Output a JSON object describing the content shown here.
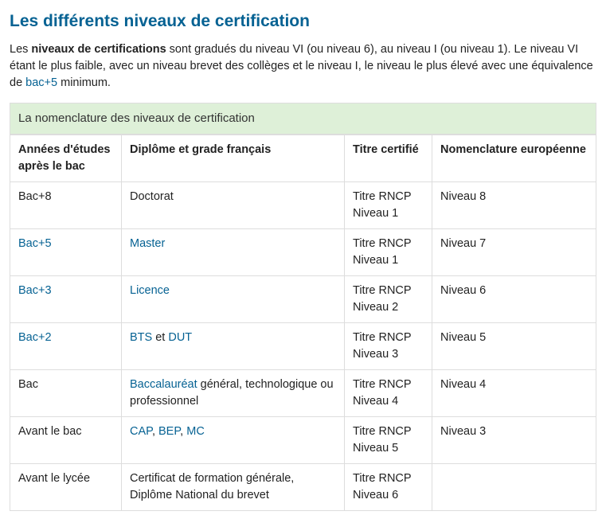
{
  "heading": "Les différents niveaux de certification",
  "intro": {
    "pre_bold": "Les ",
    "bold": "niveaux de certifications",
    "mid": " sont gradués du niveau VI (ou niveau 6), au niveau I (ou niveau 1). Le niveau VI étant le plus faible, avec un niveau brevet des collèges et le niveau I, le niveau le plus élevé avec une équivalence de ",
    "link": "bac+5",
    "post": " minimum."
  },
  "table": {
    "caption": "La nomenclature des niveaux de certification",
    "headers": {
      "a": "Années d'études après le bac",
      "b": "Diplôme et grade français",
      "c": "Titre certifié",
      "d": "Nomenclature européenne"
    },
    "rows": [
      {
        "a_text": "Bac+8",
        "a_link": false,
        "b_parts": [
          {
            "t": "Doctorat",
            "l": false
          }
        ],
        "c": "Titre RNCP Niveau 1",
        "d": "Niveau 8"
      },
      {
        "a_text": "Bac+5",
        "a_link": true,
        "b_parts": [
          {
            "t": "Master",
            "l": true
          }
        ],
        "c": "Titre RNCP Niveau 1",
        "d": "Niveau 7"
      },
      {
        "a_text": "Bac+3",
        "a_link": true,
        "b_parts": [
          {
            "t": "Licence",
            "l": true
          }
        ],
        "c": "Titre RNCP Niveau 2",
        "d": "Niveau 6"
      },
      {
        "a_text": "Bac+2",
        "a_link": true,
        "b_parts": [
          {
            "t": "BTS",
            "l": true
          },
          {
            "t": " et ",
            "l": false
          },
          {
            "t": "DUT",
            "l": true
          }
        ],
        "c": "Titre RNCP Niveau 3",
        "d": "Niveau 5"
      },
      {
        "a_text": "Bac",
        "a_link": false,
        "b_parts": [
          {
            "t": "Baccalauréat",
            "l": true
          },
          {
            "t": " général, technologique ou professionnel",
            "l": false
          }
        ],
        "c": "Titre RNCP Niveau 4",
        "d": "Niveau 4"
      },
      {
        "a_text": "Avant le bac",
        "a_link": false,
        "b_parts": [
          {
            "t": "CAP",
            "l": true
          },
          {
            "t": ", ",
            "l": false
          },
          {
            "t": "BEP",
            "l": true
          },
          {
            "t": ", ",
            "l": false
          },
          {
            "t": "MC",
            "l": true
          }
        ],
        "c": "Titre RNCP Niveau 5",
        "d": "Niveau 3"
      },
      {
        "a_text": "Avant le lycée",
        "a_link": false,
        "b_parts": [
          {
            "t": "Certificat de formation générale, Diplôme National du brevet",
            "l": false
          }
        ],
        "c": "Titre RNCP Niveau 6",
        "d": ""
      }
    ]
  }
}
